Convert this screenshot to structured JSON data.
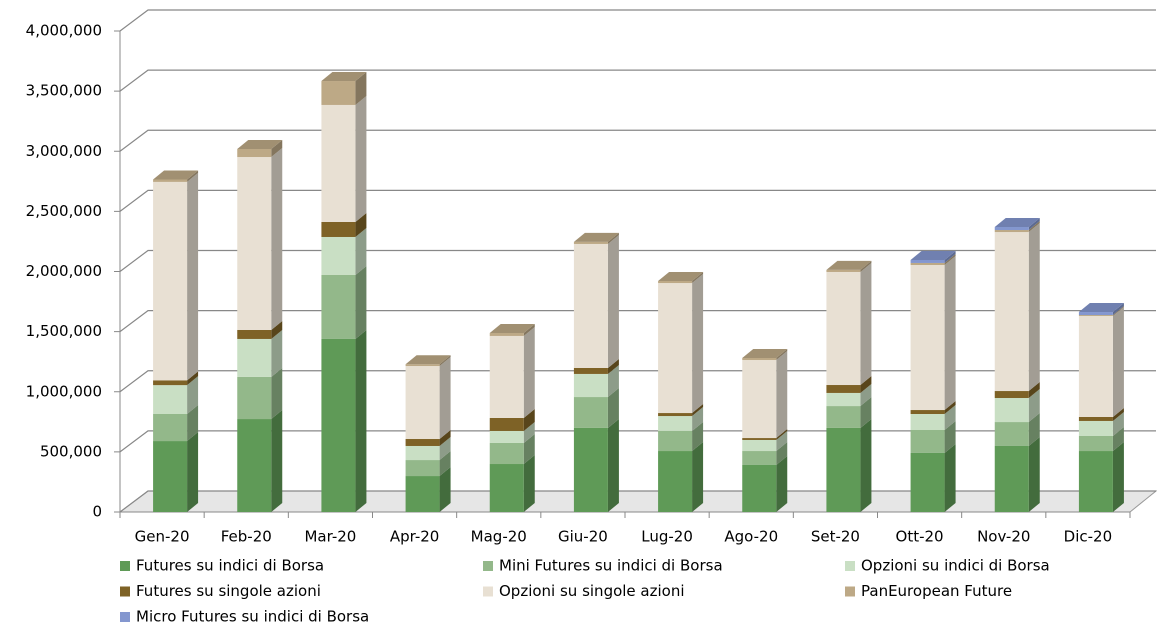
{
  "chart_data": {
    "type": "bar3d_stacked",
    "categories": [
      "Gen-20",
      "Feb-20",
      "Mar-20",
      "Apr-20",
      "Mag-20",
      "Giu-20",
      "Lug-20",
      "Ago-20",
      "Set-20",
      "Ott-20",
      "Nov-20",
      "Dic-20"
    ],
    "series": [
      {
        "name": "Futures su indici di Borsa",
        "color": "#5f9a57",
        "values": [
          590000,
          773000,
          1439000,
          299000,
          399000,
          699000,
          507000,
          391000,
          699000,
          491000,
          549000,
          507000
        ]
      },
      {
        "name": "Mini Futures su indici di Borsa",
        "color": "#93b88a",
        "values": [
          225000,
          350000,
          532000,
          133000,
          175000,
          257000,
          167000,
          116000,
          182000,
          191000,
          199000,
          125000
        ]
      },
      {
        "name": "Opzioni su indici di Borsa",
        "color": "#c9dfc4",
        "values": [
          240000,
          316000,
          316000,
          117000,
          100000,
          192000,
          124000,
          92000,
          109000,
          133000,
          200000,
          125000
        ]
      },
      {
        "name": "Futures su singole azioni",
        "color": "#7e6226",
        "values": [
          40000,
          75000,
          125000,
          58000,
          108000,
          50000,
          25000,
          16000,
          66000,
          33000,
          58000,
          33000
        ]
      },
      {
        "name": "Opzioni su singole azioni",
        "color": "#e8e0d3",
        "values": [
          1650000,
          1438000,
          973000,
          607000,
          682000,
          1031000,
          1081000,
          649000,
          940000,
          1206000,
          1322000,
          840000
        ]
      },
      {
        "name": "PanEuropean Future",
        "color": "#bda986",
        "values": [
          20000,
          67000,
          199000,
          15000,
          25000,
          17000,
          17000,
          17000,
          17000,
          17000,
          17000,
          8000
        ]
      },
      {
        "name": "Micro Futures su indici di Borsa",
        "color": "#8497cf",
        "values": [
          0,
          0,
          0,
          0,
          0,
          0,
          0,
          0,
          0,
          25000,
          25000,
          25000
        ]
      }
    ],
    "ylim": [
      0,
      4000000
    ],
    "yticks": [
      0,
      {
        "value": 500000,
        "label": "500,000"
      },
      {
        "value": 1000000,
        "label": "1,000,000"
      },
      {
        "value": 1500000,
        "label": "1,500,000"
      },
      {
        "value": 2000000,
        "label": "2,000,000"
      },
      {
        "value": 2500000,
        "label": "2,500,000"
      },
      {
        "value": 3000000,
        "label": "3,000,000"
      },
      {
        "value": 3500000,
        "label": "3,500,000"
      },
      {
        "value": 4000000,
        "label": "4,000,000"
      }
    ],
    "grid": true
  }
}
